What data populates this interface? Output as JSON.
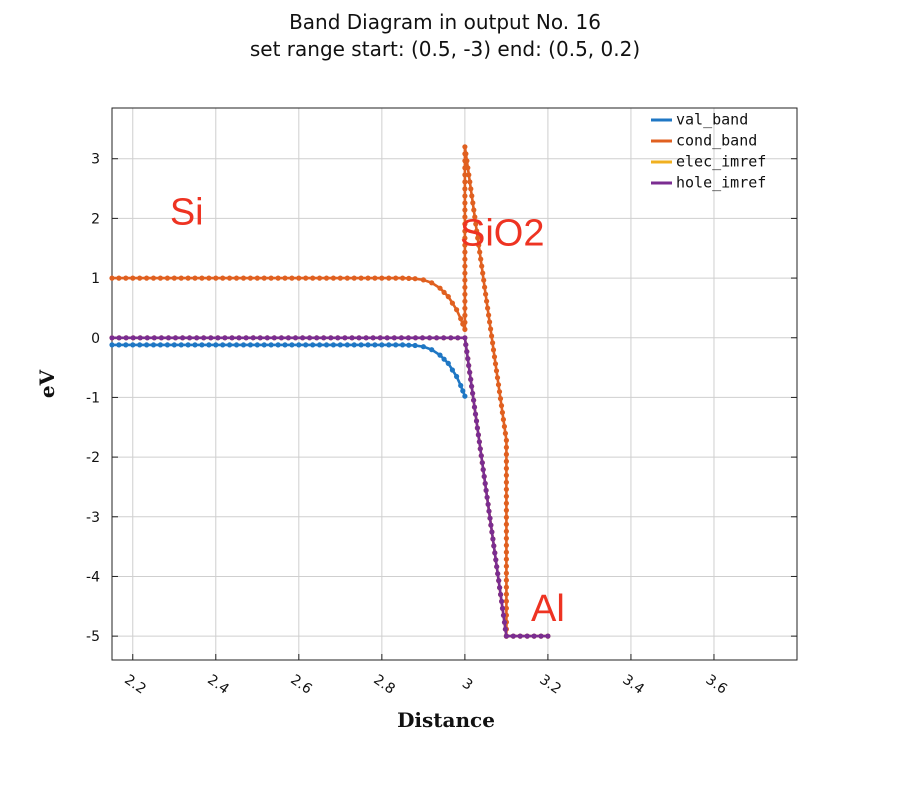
{
  "chart_data": {
    "type": "line",
    "title": "Band Diagram in output No. 16",
    "subtitle": "set range start: (0.5, -3) end: (0.5, 0.2)",
    "xlabel": "Distance",
    "ylabel": "eV",
    "xlim": [
      2.15,
      3.8
    ],
    "ylim": [
      -5.4,
      3.85
    ],
    "xticks": [
      "2.2",
      "2.4",
      "2.6",
      "2.8",
      "3",
      "3.2",
      "3.4",
      "3.6"
    ],
    "xtick_values": [
      2.2,
      2.4,
      2.6,
      2.8,
      3.0,
      3.2,
      3.4,
      3.6
    ],
    "yticks": [
      "3",
      "2",
      "1",
      "0",
      "-1",
      "-2",
      "-3",
      "-4",
      "-5"
    ],
    "ytick_values": [
      3,
      2,
      1,
      0,
      -1,
      -2,
      -3,
      -4,
      -5
    ],
    "grid": true,
    "legend_position": "top-right",
    "series": [
      {
        "name": "val_band",
        "color": "#1f77c4",
        "x": [
          2.15,
          2.3,
          2.5,
          2.7,
          2.8,
          2.85,
          2.88,
          2.9,
          2.92,
          2.94,
          2.96,
          2.98,
          2.99,
          3.0
        ],
        "y": [
          -0.12,
          -0.12,
          -0.12,
          -0.12,
          -0.12,
          -0.12,
          -0.13,
          -0.15,
          -0.2,
          -0.29,
          -0.43,
          -0.65,
          -0.8,
          -0.98
        ]
      },
      {
        "name": "cond_band",
        "color": "#e06020",
        "x": [
          2.15,
          2.3,
          2.5,
          2.7,
          2.8,
          2.85,
          2.88,
          2.9,
          2.92,
          2.94,
          2.96,
          2.98,
          2.99,
          3.0,
          3.0,
          3.05,
          3.1,
          3.1
        ],
        "y": [
          1.0,
          1.0,
          1.0,
          1.0,
          1.0,
          1.0,
          0.99,
          0.97,
          0.92,
          0.83,
          0.69,
          0.47,
          0.32,
          0.14,
          3.2,
          0.73,
          -1.72,
          -5.0
        ]
      },
      {
        "name": "elec_imref",
        "color": "#f0b020",
        "x": [
          2.15,
          3.0,
          3.1,
          3.2
        ],
        "y": [
          0.0,
          0.0,
          -5.0,
          -5.0
        ]
      },
      {
        "name": "hole_imref",
        "color": "#7b2d91",
        "x": [
          2.15,
          3.0,
          3.1,
          3.2
        ],
        "y": [
          0.0,
          0.0,
          -5.0,
          -5.0
        ]
      }
    ],
    "annotations": [
      {
        "text": "Si",
        "x": 2.33,
        "y": 1.9
      },
      {
        "text": "SiO2",
        "x": 3.09,
        "y": 1.55
      },
      {
        "text": "Al",
        "x": 3.2,
        "y": -4.75
      }
    ]
  }
}
